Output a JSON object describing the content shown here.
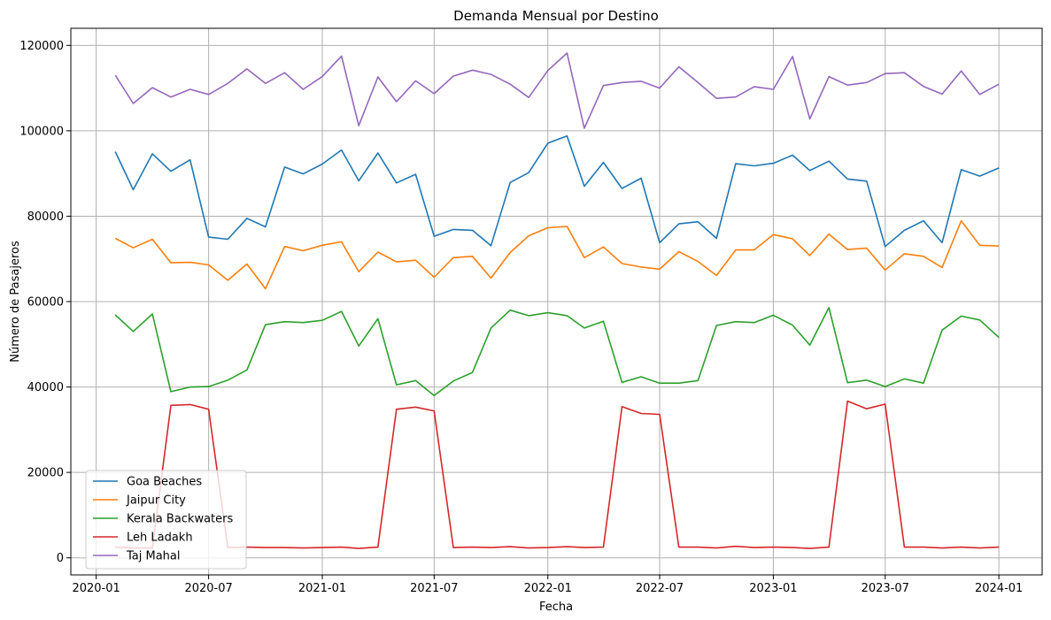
{
  "chart_data": {
    "type": "line",
    "title": "Demanda Mensual por Destino",
    "xlabel": "Fecha",
    "ylabel": "Número de Pasajeros",
    "x": [
      "2020-02",
      "2020-03",
      "2020-04",
      "2020-05",
      "2020-06",
      "2020-07",
      "2020-08",
      "2020-09",
      "2020-10",
      "2020-11",
      "2020-12",
      "2021-01",
      "2021-02",
      "2021-03",
      "2021-04",
      "2021-05",
      "2021-06",
      "2021-07",
      "2021-08",
      "2021-09",
      "2021-10",
      "2021-11",
      "2021-12",
      "2022-01",
      "2022-02",
      "2022-03",
      "2022-04",
      "2022-05",
      "2022-06",
      "2022-07",
      "2022-08",
      "2022-09",
      "2022-10",
      "2022-11",
      "2022-12",
      "2023-01",
      "2023-02",
      "2023-03",
      "2023-04",
      "2023-05",
      "2023-06",
      "2023-07",
      "2023-08",
      "2023-09",
      "2023-10",
      "2023-11",
      "2023-12",
      "2024-01"
    ],
    "xticks": [
      {
        "date": "2020-01",
        "label": "2020-01"
      },
      {
        "date": "2020-07",
        "label": "2020-07"
      },
      {
        "date": "2021-01",
        "label": "2021-01"
      },
      {
        "date": "2021-07",
        "label": "2021-07"
      },
      {
        "date": "2022-01",
        "label": "2022-01"
      },
      {
        "date": "2022-07",
        "label": "2022-07"
      },
      {
        "date": "2023-01",
        "label": "2023-01"
      },
      {
        "date": "2023-07",
        "label": "2023-07"
      },
      {
        "date": "2024-01",
        "label": "2024-01"
      }
    ],
    "yticks": [
      {
        "value": 0,
        "label": "0"
      },
      {
        "value": 20000,
        "label": "20000"
      },
      {
        "value": 40000,
        "label": "40000"
      },
      {
        "value": 60000,
        "label": "60000"
      },
      {
        "value": 80000,
        "label": "80000"
      },
      {
        "value": 100000,
        "label": "100000"
      },
      {
        "value": 120000,
        "label": "120000"
      }
    ],
    "ylim": [
      -4000,
      124000
    ],
    "xlim": [
      "2019-11-21",
      "2024-03-11"
    ],
    "grid": true,
    "legend_position": "lower-left",
    "series": [
      {
        "name": "Goa Beaches",
        "color": "#1f77b4",
        "values": [
          95100,
          86200,
          94600,
          90500,
          93200,
          75100,
          74600,
          79500,
          77500,
          91500,
          89900,
          92200,
          95500,
          88300,
          94800,
          87800,
          89800,
          75300,
          76900,
          76700,
          73100,
          87900,
          90200,
          97100,
          98800,
          87000,
          92600,
          86500,
          88900,
          73800,
          78200,
          78700,
          74800,
          92300,
          91800,
          92400,
          94300,
          90700,
          92900,
          88700,
          88200,
          72900,
          76700,
          78900,
          73800,
          90900,
          89400,
          91300
        ]
      },
      {
        "name": "Jaipur City",
        "color": "#ff7f0e",
        "values": [
          74800,
          72600,
          74600,
          69100,
          69200,
          68600,
          65000,
          68800,
          63000,
          72900,
          71900,
          73200,
          74000,
          67000,
          71600,
          69300,
          69700,
          65700,
          70300,
          70600,
          65500,
          71500,
          75400,
          77300,
          77600,
          70300,
          72800,
          68900,
          68100,
          67600,
          71700,
          69400,
          66100,
          72100,
          72100,
          75700,
          74700,
          70800,
          75800,
          72200,
          72500,
          67400,
          71200,
          70600,
          68000,
          78900,
          73200,
          73000
        ]
      },
      {
        "name": "Kerala Backwaters",
        "color": "#2ca02c",
        "values": [
          56900,
          53000,
          57100,
          38900,
          40000,
          40100,
          41600,
          44000,
          54600,
          55300,
          55100,
          55600,
          57700,
          49600,
          56000,
          40500,
          41500,
          38000,
          41400,
          43400,
          53800,
          58000,
          56700,
          57400,
          56700,
          53800,
          55400,
          41100,
          42400,
          40900,
          40900,
          41500,
          54400,
          55300,
          55100,
          56800,
          54500,
          49800,
          58600,
          41000,
          41600,
          40100,
          41900,
          40900,
          53300,
          56600,
          55700,
          51600
        ]
      },
      {
        "name": "Leh Ladakh",
        "color": "#d62728",
        "values": [
          2500,
          2300,
          2300,
          35700,
          35900,
          34800,
          2400,
          2500,
          2400,
          2400,
          2300,
          2400,
          2500,
          2200,
          2500,
          34800,
          35300,
          34400,
          2400,
          2500,
          2400,
          2600,
          2300,
          2400,
          2600,
          2400,
          2500,
          35400,
          33800,
          33600,
          2500,
          2500,
          2300,
          2700,
          2400,
          2500,
          2400,
          2200,
          2500,
          36700,
          34900,
          36000,
          2500,
          2500,
          2300,
          2500,
          2300,
          2500
        ]
      },
      {
        "name": "Taj Mahal",
        "color": "#9467bd",
        "values": [
          113000,
          106400,
          110100,
          107900,
          109700,
          108500,
          111100,
          114500,
          111100,
          113600,
          109700,
          112700,
          117500,
          101200,
          112600,
          106800,
          111700,
          108700,
          112800,
          114200,
          113200,
          110900,
          107800,
          114100,
          118200,
          100600,
          110600,
          111300,
          111600,
          110000,
          115000,
          111300,
          107600,
          107900,
          110300,
          109700,
          117400,
          102800,
          112700,
          110700,
          111300,
          113400,
          113600,
          110400,
          108600,
          114000,
          108500,
          110900
        ]
      }
    ]
  }
}
